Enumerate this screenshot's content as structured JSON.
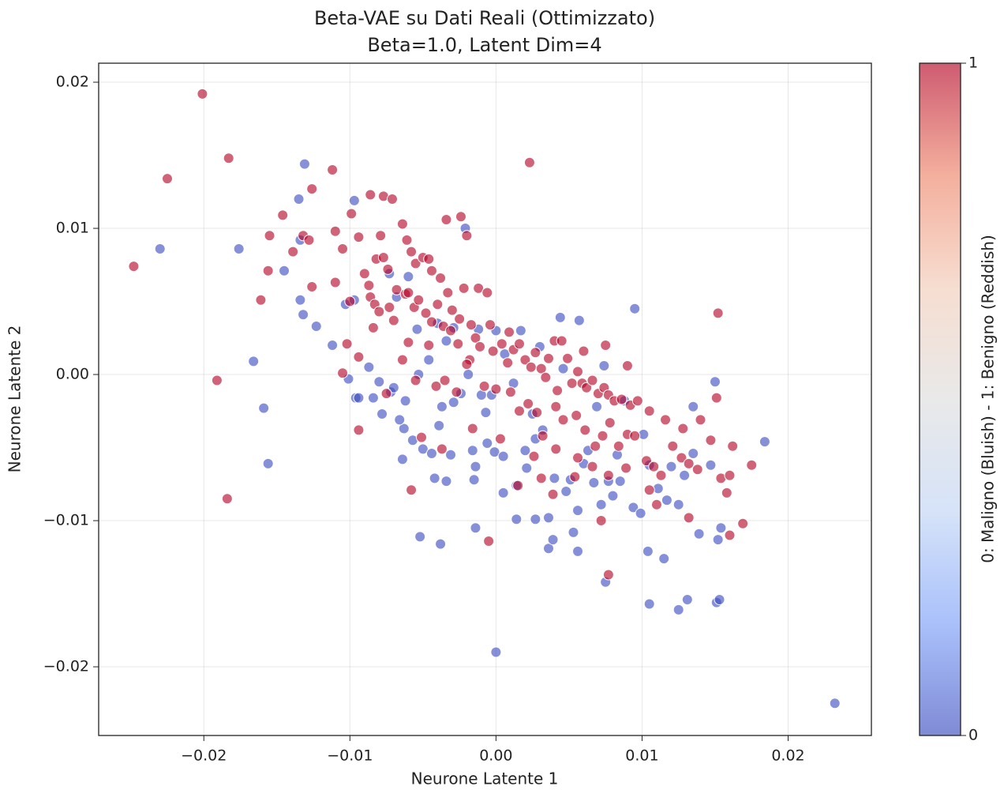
{
  "chart_data": {
    "type": "scatter",
    "title": "Beta-VAE su Dati Reali (Ottimizzato)",
    "subtitle": "Beta=1.0, Latent Dim=4",
    "xlabel": "Neurone Latente 1",
    "ylabel": "Neurone Latente 2",
    "xlim": [
      -0.0272,
      0.0257
    ],
    "ylim": [
      -0.0247,
      0.0213
    ],
    "xticks": [
      {
        "value": -0.02,
        "label": "−0.02"
      },
      {
        "value": -0.01,
        "label": "−0.01"
      },
      {
        "value": 0,
        "label": "0.00"
      },
      0.01,
      0.02
    ],
    "yticks": [
      {
        "value": -0.02,
        "label": "−0.02"
      },
      {
        "value": -0.01,
        "label": "−0.01"
      },
      {
        "value": 0,
        "label": "0.00"
      },
      0.01,
      0.02
    ],
    "grid": true,
    "colorbar_label": "0: Maligno (Bluish) - 1: Benigno (Reddish)",
    "clim": [
      0,
      1
    ],
    "cticks": [
      0,
      1
    ],
    "colormap": [
      "#3b4cc0",
      "#7b9ff9",
      "#c0d4f5",
      "#dddddd",
      "#f2cbb7",
      "#ee8468",
      "#b40426"
    ],
    "series": [
      {
        "color": "#3b4cc0",
        "x": [
          -0.023,
          0.0232,
          0,
          -0.0131,
          -0.0176,
          -0.0166,
          -0.0159,
          -0.0156,
          0.0184,
          0.0095,
          0.0105,
          0.0125,
          0.0131,
          0.0151,
          0.0153,
          0.0075,
          -0.0052,
          -0.0038,
          -0.0014,
          0.0014,
          0.0036,
          0.0056,
          0.0104,
          0.0115,
          0.0139,
          0.0152,
          0.0154,
          -0.0132,
          -0.0134,
          -0.0123,
          -0.0112,
          -0.0101,
          -0.0096,
          -0.0145,
          -0.0097,
          -0.0021,
          -0.0134,
          -0.0135,
          -0.0103,
          -0.0097,
          -0.0094,
          -0.0087,
          -0.008,
          -0.0078,
          -0.0072,
          -0.0062,
          -0.0064,
          -0.0063,
          -0.0057,
          -0.005,
          -0.0044,
          -0.0042,
          -0.0031,
          -0.0034,
          -0.0016,
          -0.0014,
          -0.0015,
          -0.0006,
          -0.0001,
          0.0005,
          0.0005,
          0.0014,
          0.002,
          0.0021,
          0.0027,
          0.0027,
          0.0036,
          0.004,
          0.0048,
          0.0051,
          0.0056,
          0.006,
          0.0063,
          0.0067,
          0.0072,
          0.0077,
          0.008,
          0.0085,
          0.0094,
          0.0099,
          0.0101,
          0.0105,
          0.0111,
          0.0117,
          0.012,
          0.0129,
          0.0135,
          0.0135,
          0.015,
          0.0147,
          0.0125,
          -0.0054,
          -0.0046,
          -0.0034,
          -0.0029,
          -0.0024,
          -0.0019,
          -0.001,
          0,
          0.0012,
          0.0017,
          0.003,
          0.0046,
          0.0057,
          0.0044,
          0.0074,
          0.0088,
          -0.0068,
          -0.0073,
          -0.006,
          -0.0053,
          -0.004,
          -0.007,
          -0.0029,
          -0.0066,
          -0.0039,
          -0.0037,
          -0.0012,
          -0.0003,
          0.0006,
          0.0025,
          0.0032,
          0.0069,
          0.0083,
          0.0053,
          0.0039,
          -0.0084,
          -0.0007
        ],
        "y": [
          0.0086,
          -0.0225,
          -0.019,
          0.0144,
          0.0086,
          0.0009,
          -0.0023,
          -0.0061,
          -0.0046,
          0.0045,
          -0.0157,
          -0.0161,
          -0.0154,
          -0.0156,
          -0.0154,
          -0.0142,
          -0.0111,
          -0.0116,
          -0.0105,
          -0.0099,
          -0.0119,
          -0.0121,
          -0.0121,
          -0.0126,
          -0.0109,
          -0.0113,
          -0.0105,
          0.0041,
          0.0051,
          0.0033,
          0.002,
          -0.0003,
          -0.0016,
          0.0071,
          0.0119,
          0.01,
          0.0092,
          0.012,
          0.0048,
          0.0051,
          -0.0016,
          0.0005,
          -0.0005,
          -0.0027,
          -0.0012,
          -0.0018,
          -0.0058,
          -0.0037,
          -0.0045,
          -0.0051,
          -0.0054,
          -0.0071,
          -0.0055,
          -0.0073,
          -0.0052,
          -0.0063,
          -0.0072,
          -0.0047,
          -0.0053,
          -0.0056,
          -0.0081,
          -0.0076,
          -0.0052,
          -0.0064,
          -0.0044,
          -0.0099,
          -0.0098,
          -0.0071,
          -0.008,
          -0.0072,
          -0.0093,
          -0.0061,
          -0.0052,
          -0.0074,
          -0.0089,
          -0.0073,
          -0.0083,
          -0.0073,
          -0.0091,
          -0.0095,
          -0.0041,
          -0.0062,
          -0.0078,
          -0.0086,
          -0.0063,
          -0.0069,
          -0.0054,
          -0.0022,
          -0.0005,
          -0.0062,
          -0.0089,
          0.0031,
          0.001,
          0.0023,
          0.0032,
          -0.0013,
          0,
          -0.0014,
          0.003,
          -0.0006,
          0.003,
          0.0019,
          0.0004,
          0.0037,
          0.0039,
          0.0006,
          -0.0018,
          0.0053,
          0.0069,
          0.0067,
          0,
          0.0035,
          -0.0009,
          -0.0019,
          -0.0031,
          -0.0035,
          -0.0022,
          0.0031,
          -0.0014,
          0.0014,
          -0.0027,
          -0.0038,
          -0.0022,
          -0.0055,
          -0.0108,
          -0.0113,
          -0.0016,
          -0.0026
        ]
      },
      {
        "color": "#b40426",
        "x": [
          -0.0248,
          -0.0225,
          -0.0201,
          -0.0183,
          -0.0191,
          -0.0184,
          0.0023,
          0.0152,
          0.0169,
          0.0175,
          0.0077,
          -0.0005,
          -0.011,
          -0.0105,
          -0.011,
          -0.01,
          -0.0094,
          -0.009,
          -0.0087,
          -0.0082,
          -0.0077,
          -0.0074,
          -0.0079,
          -0.0077,
          -0.0071,
          -0.0064,
          -0.0061,
          -0.0058,
          -0.0055,
          -0.005,
          -0.0046,
          -0.0044,
          -0.0038,
          -0.0034,
          -0.0024,
          -0.002,
          -0.0086,
          -0.0083,
          -0.008,
          -0.0073,
          -0.007,
          -0.0068,
          -0.0062,
          -0.006,
          -0.0056,
          -0.0053,
          -0.0048,
          -0.0044,
          -0.004,
          -0.0036,
          -0.0033,
          -0.003,
          -0.0025,
          -0.0022,
          -0.0017,
          -0.0012,
          -0.0006,
          -0.0004,
          -0.0014,
          -0.0011,
          -0.0002,
          0.0004,
          0.0009,
          0.0012,
          0.0016,
          0.002,
          0.0024,
          0.0027,
          0.0031,
          0.0034,
          0.0036,
          0.004,
          0.0045,
          0.0049,
          0.0052,
          0.0056,
          0.0059,
          0.0062,
          0.0066,
          0.007,
          0.0074,
          0.0077,
          0.0081,
          0.0086,
          0.0092,
          0.0097,
          0.0032,
          0.0041,
          0.0046,
          0.0055,
          0.0061,
          0.0068,
          0.0073,
          0.0078,
          0.0084,
          0.009,
          0.0095,
          0.0103,
          0.0108,
          0.0113,
          0.0116,
          0.0121,
          0.0127,
          0.0132,
          0.014,
          0.0147,
          0.0151,
          0.0154,
          0.0158,
          0.016,
          0.0162,
          0.016,
          0.0138,
          0.0132,
          0.011,
          0.0105,
          0.0089,
          0.0077,
          0.0066,
          0.0056,
          0.0041,
          0.0031,
          0.0026,
          0.0015,
          0.0003,
          0.0054,
          0.0072,
          0.0039,
          -0.0016,
          -0.0037,
          -0.0051,
          -0.0058,
          -0.0094,
          -0.0075,
          -0.0055,
          -0.0041,
          -0.0027,
          -0.0018,
          -0.0046,
          -0.006,
          -0.0084,
          -0.0094,
          -0.0102,
          -0.0105,
          -0.0126,
          -0.0132,
          -0.0128,
          -0.0139,
          -0.0146,
          -0.0155,
          -0.0156,
          -0.0161,
          -0.0112,
          -0.0126,
          -0.0099,
          -0.0086,
          -0.0031,
          -0.002,
          0,
          0.001,
          0.0016,
          0.0022,
          0.0008,
          -0.0008,
          0.006,
          0.0075,
          0.009,
          0.0042,
          0.0028,
          -0.0064,
          -0.0035,
          0.0105,
          0.0128,
          -0.0026
        ],
        "y": [
          0.0074,
          0.0134,
          0.0192,
          0.0148,
          -0.0004,
          -0.0085,
          0.0145,
          0.0042,
          -0.0102,
          -0.0062,
          -0.0137,
          -0.0114,
          0.0098,
          0.0086,
          0.0063,
          0.005,
          0.0094,
          0.0069,
          0.0061,
          0.0079,
          0.008,
          0.0072,
          0.0095,
          0.0122,
          0.012,
          0.0103,
          0.0092,
          0.0084,
          0.0076,
          0.008,
          0.0079,
          0.0071,
          0.0066,
          0.0106,
          0.0108,
          0.0095,
          0.0053,
          0.0048,
          0.0043,
          0.0046,
          0.0037,
          0.0058,
          0.0055,
          0.0056,
          0.0046,
          0.0051,
          0.0042,
          0.0036,
          0.0048,
          0.0033,
          0.0056,
          0.0044,
          0.0038,
          0.0059,
          0.0034,
          0.0059,
          0.0056,
          0.0034,
          0.0025,
          0.0019,
          0.0016,
          0.0021,
          0.0029,
          0.0017,
          0.0021,
          0.001,
          0.0005,
          0.0015,
          0.0004,
          -0.0002,
          0.0011,
          0.0023,
          0.0023,
          0.0011,
          -0.0006,
          0.0002,
          -0.0006,
          -0.0009,
          -0.0004,
          -0.0013,
          -0.0009,
          -0.0014,
          -0.0018,
          -0.0017,
          -0.0021,
          -0.0018,
          -0.0042,
          -0.0022,
          -0.0031,
          -0.0028,
          -0.0038,
          -0.0049,
          -0.0042,
          -0.0033,
          -0.0049,
          -0.0041,
          -0.0042,
          -0.0059,
          -0.0063,
          -0.0069,
          -0.0031,
          -0.0049,
          -0.0057,
          -0.0061,
          -0.0031,
          -0.0045,
          -0.0016,
          -0.0071,
          -0.0081,
          -0.0069,
          -0.0049,
          -0.011,
          -0.0065,
          -0.0098,
          -0.0089,
          -0.0079,
          -0.0064,
          -0.0069,
          -0.0063,
          -0.0057,
          -0.0051,
          -0.0071,
          -0.0056,
          -0.0076,
          -0.0044,
          -0.007,
          -0.01,
          -0.0082,
          -0.0037,
          -0.0051,
          -0.0043,
          -0.0079,
          -0.0038,
          -0.0013,
          -0.0004,
          -0.0008,
          -0.0012,
          0.001,
          0.002,
          0.0022,
          0.0032,
          0.0012,
          0.0021,
          0.0001,
          0.006,
          0.0095,
          0.0092,
          0.0084,
          0.0109,
          0.0095,
          0.0071,
          0.0051,
          0.014,
          0.0127,
          0.011,
          0.0123,
          0.003,
          0.0007,
          -0.001,
          -0.0012,
          -0.0025,
          -0.002,
          0.0008,
          -0.0008,
          0.0016,
          0.002,
          0.0006,
          -0.0011,
          -0.0026,
          0.001,
          -0.0004,
          -0.0025,
          -0.0037,
          0.0021
        ]
      }
    ]
  }
}
